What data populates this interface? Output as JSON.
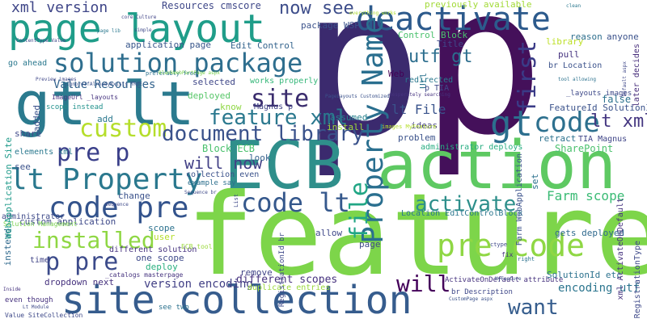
{
  "words": [
    {
      "text": "p",
      "color": "#3b2a6e"
    },
    {
      "text": "p",
      "color": "#44105a"
    },
    {
      "text": "feature",
      "color": "#7dd54a"
    },
    {
      "text": "ECB",
      "color": "#2f8f8b"
    },
    {
      "text": "action",
      "color": "#5ec962"
    },
    {
      "text": "site collection",
      "color": "#365c8d"
    },
    {
      "text": "deactivate",
      "color": "#2c5a8c"
    },
    {
      "text": "page layout",
      "color": "#1f9d89"
    },
    {
      "text": "gt lt",
      "color": "#2b7a8e"
    },
    {
      "text": "solution package",
      "color": "#2e6e8e"
    },
    {
      "text": "lt Property",
      "color": "#2a788e"
    },
    {
      "text": "Property Name",
      "color": "#2a6f8f"
    },
    {
      "text": "code pre",
      "color": "#33538c"
    },
    {
      "text": "pre code",
      "color": "#8fd744"
    },
    {
      "text": "custom",
      "color": "#b5de2b"
    },
    {
      "text": "pre p",
      "color": "#3a3f8a"
    },
    {
      "text": "installed",
      "color": "#8fd744"
    },
    {
      "text": "p pre",
      "color": "#3b4a8a"
    },
    {
      "text": "gt",
      "color": "#2c6f8e"
    },
    {
      "text": "code",
      "color": "#2d708e"
    },
    {
      "text": "lt xml",
      "color": "#453781"
    },
    {
      "text": "site",
      "color": "#3a2c6d"
    },
    {
      "text": "feature xml",
      "color": "#2a788e"
    },
    {
      "text": "document library",
      "color": "#3a528b"
    },
    {
      "text": "code lt",
      "color": "#35588c"
    },
    {
      "text": "will now",
      "color": "#424086"
    },
    {
      "text": "activate",
      "color": "#2e8f8b"
    },
    {
      "text": "file",
      "color": "#21a685"
    },
    {
      "text": "first",
      "color": "#3a3b87"
    },
    {
      "text": "will",
      "color": "#44005a"
    },
    {
      "text": "want",
      "color": "#365d8d"
    },
    {
      "text": "utf gt",
      "color": "#2c6e8e"
    },
    {
      "text": "now see",
      "color": "#3d4d8a"
    },
    {
      "text": "xml version",
      "color": "#3f4688"
    },
    {
      "text": "Farm scope",
      "color": "#3bbb75"
    },
    {
      "text": "lt File",
      "color": "#3a548c"
    },
    {
      "text": "version encoding",
      "color": "#424086"
    },
    {
      "text": "encoding utf",
      "color": "#2b758e"
    },
    {
      "text": "different scopes",
      "color": "#46317e"
    },
    {
      "text": "Value Resources",
      "color": "#33638d"
    },
    {
      "text": "Resources cmscore",
      "color": "#3f4889"
    },
    {
      "text": "Edit Control",
      "color": "#33638d"
    },
    {
      "text": "application page",
      "color": "#38568b"
    },
    {
      "text": "package WSP",
      "color": "#3b528b"
    },
    {
      "text": "Control Block",
      "color": "#4ac16d"
    },
    {
      "text": "previously available",
      "color": "#a2da37"
    },
    {
      "text": "Block ECB",
      "color": "#4ac16d"
    },
    {
      "text": "SharePoint",
      "color": "#4ac16d"
    },
    {
      "text": "retract",
      "color": "#2c728e"
    },
    {
      "text": "FeatureId SolutionId",
      "color": "#3b528b"
    },
    {
      "text": "TIA Magnus",
      "color": "#404688"
    },
    {
      "text": "problem",
      "color": "#3b528b"
    },
    {
      "text": "administrator deploys",
      "color": "#27ad81"
    },
    {
      "text": "custom application",
      "color": "#3e4989"
    },
    {
      "text": "dropdown next",
      "color": "#46327e"
    },
    {
      "text": "Location EditControlBlock",
      "color": "#2a768e"
    },
    {
      "text": "gets deployed",
      "color": "#306a8e"
    },
    {
      "text": "ActivateOnDefault attribute",
      "color": "#46337f"
    },
    {
      "text": "SolutionId etc",
      "color": "#2c728e"
    },
    {
      "text": "one scope",
      "color": "#3e4989"
    },
    {
      "text": "duplicate entries",
      "color": "#9bd93c"
    },
    {
      "text": "remove",
      "color": "#414487"
    },
    {
      "text": "deploy",
      "color": "#29af7f"
    },
    {
      "text": "even though",
      "color": "#46317e"
    },
    {
      "text": "see two",
      "color": "#2c728e"
    },
    {
      "text": "administrator",
      "color": "#3e4a89"
    },
    {
      "text": "Solution Management",
      "color": "#7ad151"
    },
    {
      "text": "instead",
      "color": "#306a8e"
    },
    {
      "text": "pull",
      "color": "#46337f"
    },
    {
      "text": "reason",
      "color": "#2e6f8e"
    },
    {
      "text": "anyone",
      "color": "#3b528b"
    },
    {
      "text": "library",
      "color": "#bddf26"
    },
    {
      "text": "Title",
      "color": "#3f4889"
    },
    {
      "text": "br Location",
      "color": "#3b528b"
    },
    {
      "text": "Url",
      "color": "#2c738e"
    },
    {
      "text": "p TIA",
      "color": "#3e4989"
    },
    {
      "text": "redirected",
      "color": "#2a788e"
    },
    {
      "text": "Web",
      "color": "#440154"
    },
    {
      "text": "false",
      "color": "#2c728e"
    },
    {
      "text": "ideas",
      "color": "#433e85"
    },
    {
      "text": "assumed",
      "color": "#26828e"
    },
    {
      "text": "install",
      "color": "#9fda3a"
    },
    {
      "text": "deployed",
      "color": "#56c667"
    },
    {
      "text": "know",
      "color": "#8fd744"
    },
    {
      "text": "selected",
      "color": "#3f4788"
    },
    {
      "text": "works properly",
      "color": "#35b779"
    },
    {
      "text": "Magnus p",
      "color": "#414487"
    },
    {
      "text": "add",
      "color": "#2a788e"
    },
    {
      "text": "share",
      "color": "#3e4989"
    },
    {
      "text": "elements xml",
      "color": "#2a788e"
    },
    {
      "text": "see",
      "color": "#3b528b"
    },
    {
      "text": "look",
      "color": "#34608d"
    },
    {
      "text": "set",
      "color": "#2c728e"
    },
    {
      "text": "allow",
      "color": "#3f4889"
    },
    {
      "text": "page",
      "color": "#3e4a89"
    },
    {
      "text": "change",
      "color": "#3b528b"
    },
    {
      "text": "user",
      "color": "#b5de2b"
    },
    {
      "text": "scope",
      "color": "#2c728e"
    },
    {
      "text": "example say",
      "color": "#2d708e"
    },
    {
      "text": "different solution",
      "color": "#46337f"
    },
    {
      "text": "time",
      "color": "#414487"
    },
    {
      "text": "go ahead",
      "color": "#2a788e"
    },
    {
      "text": "scope instead",
      "color": "#21918c"
    },
    {
      "text": "added",
      "color": "#3b528b"
    },
    {
      "text": "later decides",
      "color": "#472d7b"
    },
    {
      "text": "WebApplication Site",
      "color": "#1f9a8a"
    },
    {
      "text": "ImageUrl _layouts",
      "color": "#46337f"
    },
    {
      "text": "preferably free",
      "color": "#2c728e"
    },
    {
      "text": "IgnoreIfAlreadyExists TRUE",
      "color": "#3b528b"
    },
    {
      "text": "Preview images",
      "color": "#3f4788"
    },
    {
      "text": "core Culture",
      "color": "#414487"
    },
    {
      "text": "simple",
      "color": "#3e4989"
    },
    {
      "text": "page lib",
      "color": "#2a788e"
    },
    {
      "text": "everything works",
      "color": "#addc30"
    },
    {
      "text": "desperately searching",
      "color": "#46337f"
    },
    {
      "text": "Farm WebApplication",
      "color": "#3b528b"
    },
    {
      "text": "xml ActivateOnDefault",
      "color": "#46337f"
    },
    {
      "text": "RegistrationType",
      "color": "#3e4989"
    },
    {
      "text": "RegistrationId br",
      "color": "#3e4989"
    },
    {
      "text": "CustomPage aspx",
      "color": "#3b528b"
    },
    {
      "text": "br Description",
      "color": "#3f4889"
    },
    {
      "text": "Value SiteCollection",
      "color": "#3e4989"
    },
    {
      "text": "collection even",
      "color": "#3b528b"
    },
    {
      "text": "Sequence br",
      "color": "#3e4989"
    },
    {
      "text": "tool allowing",
      "color": "#2c728e"
    },
    {
      "text": "_layouts images",
      "color": "#3e4989"
    },
    {
      "text": "images MyFeature",
      "color": "#b5de2b"
    },
    {
      "text": "ECB tool",
      "color": "#9bd93c"
    },
    {
      "text": "_catalogs masterpage",
      "color": "#46337f"
    },
    {
      "text": "List",
      "color": "#3e4989"
    },
    {
      "text": "Sequence",
      "color": "#3e4989"
    },
    {
      "text": "Inside",
      "color": "#46337f"
    },
    {
      "text": "Default aspx",
      "color": "#3f4889"
    },
    {
      "text": "Lt Module",
      "color": "#3e4989"
    },
    {
      "text": "ctype",
      "color": "#3e4989"
    },
    {
      "text": "PageLayouts Customized",
      "color": "#3b528b"
    },
    {
      "text": "BlankWebPartPage aspx",
      "color": "#7ad151"
    },
    {
      "text": "ContentType Value",
      "color": "#3e4989"
    },
    {
      "text": "fix",
      "color": "#46337f"
    },
    {
      "text": "right",
      "color": "#2c728e"
    },
    {
      "text": "clean",
      "color": "#2a788e"
    },
    {
      "text": "MyFeature",
      "color": "#3b528b"
    }
  ]
}
